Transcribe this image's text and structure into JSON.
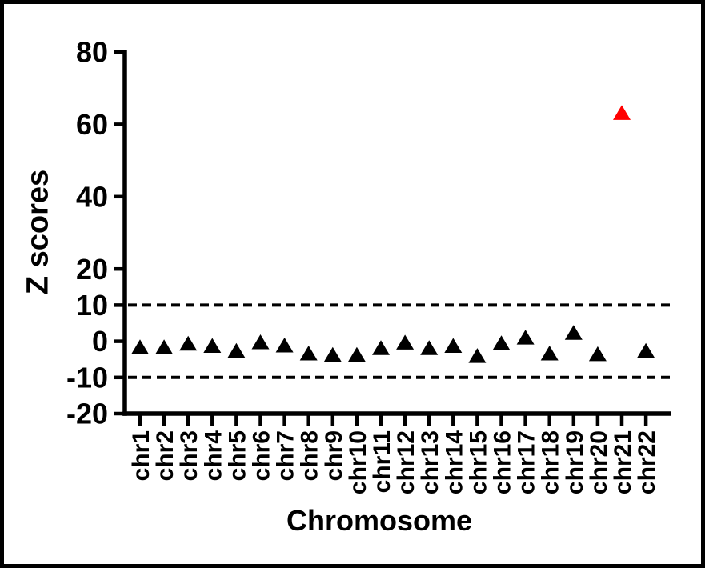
{
  "figure": {
    "background": "#FFFFFF",
    "border_color": "#000000"
  },
  "chart_data": {
    "type": "scatter",
    "marker": "triangle-up",
    "title": "",
    "xlabel": "Chromosome",
    "ylabel": "Z scores",
    "categories": [
      "chr1",
      "chr2",
      "chr3",
      "chr4",
      "chr5",
      "chr6",
      "chr7",
      "chr8",
      "chr9",
      "chr10",
      "chr11",
      "chr12",
      "chr13",
      "chr14",
      "chr15",
      "chr16",
      "chr17",
      "chr18",
      "chr19",
      "chr20",
      "chr21",
      "chr22"
    ],
    "values": [
      -1.7,
      -1.7,
      -0.7,
      -1.3,
      -2.7,
      -0.3,
      -1.2,
      -3.4,
      -3.8,
      -3.8,
      -1.9,
      -0.4,
      -1.9,
      -1.3,
      -4.1,
      -0.6,
      1.0,
      -3.4,
      2.3,
      -3.6,
      63.1,
      -2.7
    ],
    "ylim": [
      -20,
      80
    ],
    "yticks": [
      80,
      60,
      40,
      20,
      10,
      0,
      -10,
      -20
    ],
    "ytick_labels": [
      "80",
      "60",
      "40",
      "20",
      "10",
      "0",
      "-10",
      "-20"
    ],
    "threshold_lines": [
      {
        "y": 10,
        "style": "dashed"
      },
      {
        "y": -10,
        "style": "dashed"
      }
    ],
    "grid": false,
    "legend": "none",
    "highlight": {
      "index": 20,
      "category": "chr21",
      "color": "#FF0000"
    },
    "colors": {
      "marker": "#000000",
      "highlight": "#FF0000",
      "axis": "#000000",
      "threshold": "#000000"
    }
  }
}
